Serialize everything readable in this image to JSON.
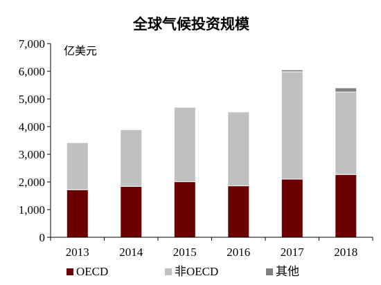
{
  "chart_data": {
    "type": "bar",
    "stacked": true,
    "title": "全球气候投资规模",
    "unit_label": "亿美元",
    "categories": [
      "2013",
      "2014",
      "2015",
      "2016",
      "2017",
      "2018"
    ],
    "series": [
      {
        "name": "OECD",
        "color": "#6b0000",
        "values": [
          1720,
          1840,
          2010,
          1860,
          2100,
          2270
        ]
      },
      {
        "name": "非OECD",
        "color": "#c0c0c0",
        "values": [
          1700,
          2050,
          2690,
          2670,
          3880,
          2980
        ]
      },
      {
        "name": "其他",
        "color": "#808080",
        "values": [
          0,
          0,
          0,
          0,
          70,
          150
        ]
      }
    ],
    "ylim": [
      0,
      7000
    ],
    "yticks": [
      0,
      1000,
      2000,
      3000,
      4000,
      5000,
      6000,
      7000
    ],
    "ytick_labels": [
      "0",
      "1,000",
      "2,000",
      "3,000",
      "4,000",
      "5,000",
      "6,000",
      "7,000"
    ],
    "grid": false,
    "legend_position": "bottom"
  }
}
